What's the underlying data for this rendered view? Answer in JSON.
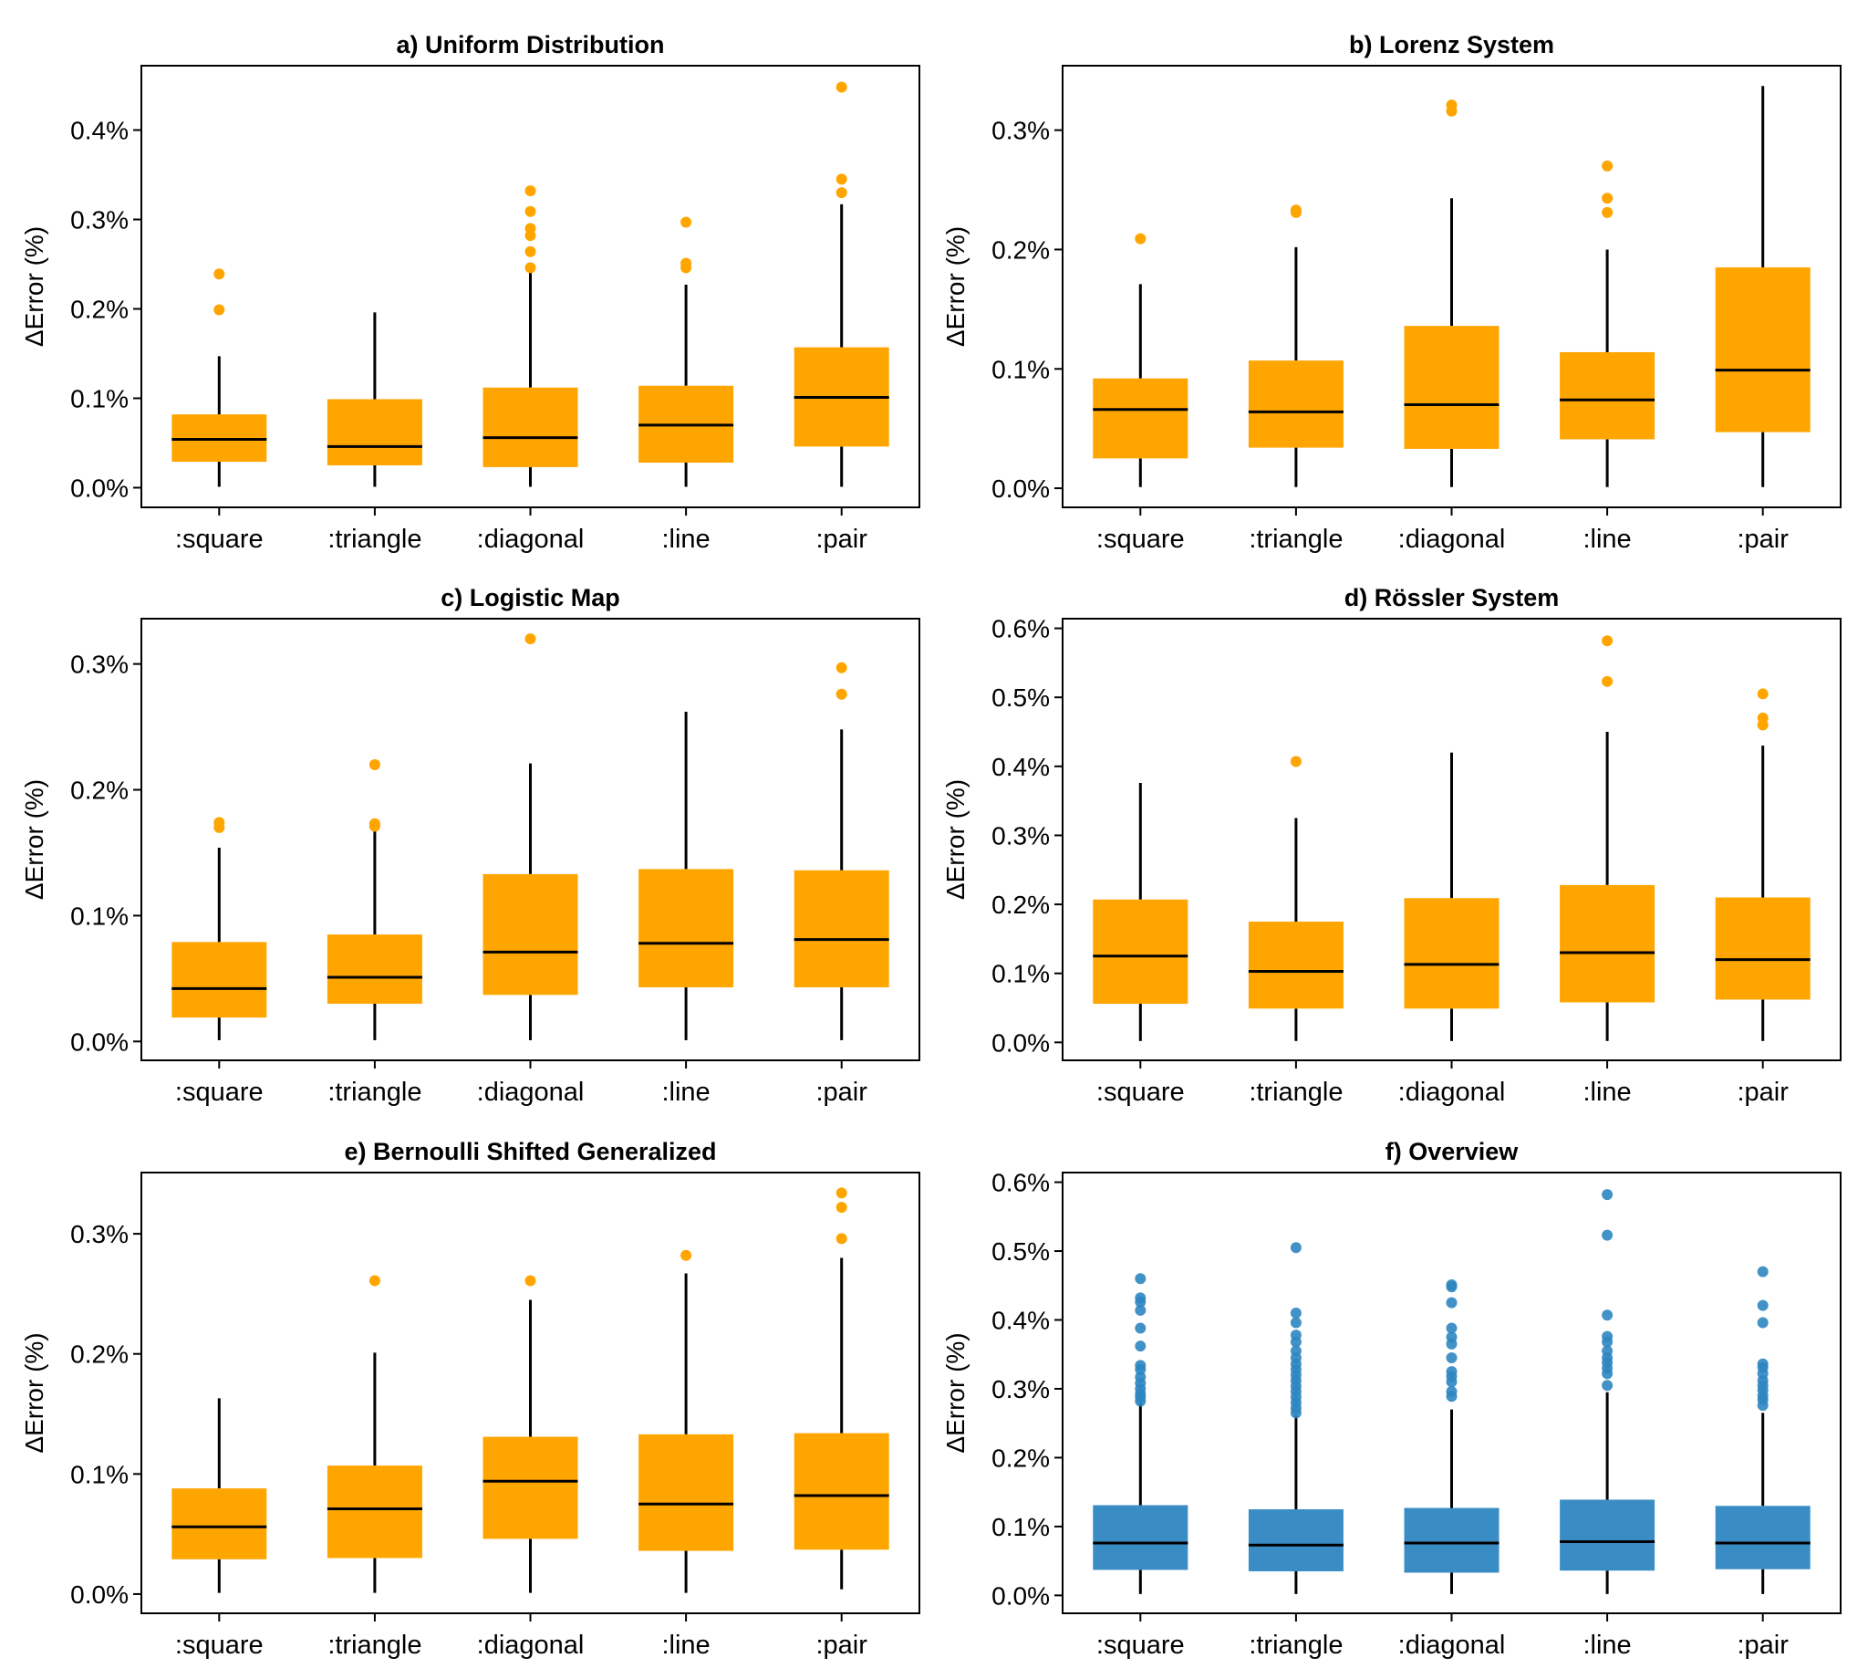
{
  "colors": {
    "orange": "#FFA500",
    "blue": "#3A8DC4",
    "blue_outlier": "#2E86C1",
    "line": "#000000"
  },
  "chart_data": [
    {
      "type": "box",
      "title": "a) Uniform Distribution",
      "ylabel": "ΔError (%)",
      "categories": [
        ":square",
        ":triangle",
        ":diagonal",
        ":line",
        ":pair"
      ],
      "yticks": [
        "0.0%",
        "0.1%",
        "0.2%",
        "0.3%",
        "0.4%"
      ],
      "ylim": [
        -0.022,
        0.472
      ],
      "color": "orange",
      "boxes": [
        {
          "whisker_low": 0.001,
          "q1": 0.029,
          "median": 0.054,
          "q3": 0.082,
          "whisker_high": 0.147,
          "outliers": [
            0.199,
            0.239
          ]
        },
        {
          "whisker_low": 0.001,
          "q1": 0.025,
          "median": 0.046,
          "q3": 0.099,
          "whisker_high": 0.196,
          "outliers": []
        },
        {
          "whisker_low": 0.001,
          "q1": 0.023,
          "median": 0.056,
          "q3": 0.112,
          "whisker_high": 0.244,
          "outliers": [
            0.246,
            0.264,
            0.282,
            0.29,
            0.309,
            0.332
          ]
        },
        {
          "whisker_low": 0.001,
          "q1": 0.028,
          "median": 0.07,
          "q3": 0.114,
          "whisker_high": 0.227,
          "outliers": [
            0.246,
            0.251,
            0.297
          ]
        },
        {
          "whisker_low": 0.001,
          "q1": 0.046,
          "median": 0.101,
          "q3": 0.157,
          "whisker_high": 0.317,
          "outliers": [
            0.33,
            0.345,
            0.448
          ]
        }
      ]
    },
    {
      "type": "box",
      "title": "b) Lorenz System",
      "ylabel": "ΔError (%)",
      "categories": [
        ":square",
        ":triangle",
        ":diagonal",
        ":line",
        ":pair"
      ],
      "yticks": [
        "0.0%",
        "0.1%",
        "0.2%",
        "0.3%"
      ],
      "ylim": [
        -0.016,
        0.354
      ],
      "color": "orange",
      "boxes": [
        {
          "whisker_low": 0.001,
          "q1": 0.025,
          "median": 0.066,
          "q3": 0.092,
          "whisker_high": 0.171,
          "outliers": [
            0.209
          ]
        },
        {
          "whisker_low": 0.001,
          "q1": 0.034,
          "median": 0.064,
          "q3": 0.107,
          "whisker_high": 0.202,
          "outliers": [
            0.231,
            0.233
          ]
        },
        {
          "whisker_low": 0.001,
          "q1": 0.033,
          "median": 0.07,
          "q3": 0.136,
          "whisker_high": 0.243,
          "outliers": [
            0.316,
            0.321
          ]
        },
        {
          "whisker_low": 0.001,
          "q1": 0.041,
          "median": 0.074,
          "q3": 0.114,
          "whisker_high": 0.2,
          "outliers": [
            0.231,
            0.243,
            0.27
          ]
        },
        {
          "whisker_low": 0.001,
          "q1": 0.047,
          "median": 0.099,
          "q3": 0.185,
          "whisker_high": 0.337,
          "outliers": []
        }
      ]
    },
    {
      "type": "box",
      "title": "c) Logistic Map",
      "ylabel": "ΔError (%)",
      "categories": [
        ":square",
        ":triangle",
        ":diagonal",
        ":line",
        ":pair"
      ],
      "yticks": [
        "0.0%",
        "0.1%",
        "0.2%",
        "0.3%"
      ],
      "ylim": [
        -0.015,
        0.336
      ],
      "color": "orange",
      "boxes": [
        {
          "whisker_low": 0.001,
          "q1": 0.019,
          "median": 0.042,
          "q3": 0.079,
          "whisker_high": 0.154,
          "outliers": [
            0.17,
            0.174
          ]
        },
        {
          "whisker_low": 0.001,
          "q1": 0.03,
          "median": 0.051,
          "q3": 0.085,
          "whisker_high": 0.17,
          "outliers": [
            0.171,
            0.173,
            0.22
          ]
        },
        {
          "whisker_low": 0.001,
          "q1": 0.037,
          "median": 0.071,
          "q3": 0.133,
          "whisker_high": 0.221,
          "outliers": [
            0.32
          ]
        },
        {
          "whisker_low": 0.001,
          "q1": 0.043,
          "median": 0.078,
          "q3": 0.137,
          "whisker_high": 0.262,
          "outliers": []
        },
        {
          "whisker_low": 0.001,
          "q1": 0.043,
          "median": 0.081,
          "q3": 0.136,
          "whisker_high": 0.248,
          "outliers": [
            0.276,
            0.297
          ]
        }
      ]
    },
    {
      "type": "box",
      "title": "d) Rössler System",
      "ylabel": "ΔError (%)",
      "categories": [
        ":square",
        ":triangle",
        ":diagonal",
        ":line",
        ":pair"
      ],
      "yticks": [
        "0.0%",
        "0.1%",
        "0.2%",
        "0.3%",
        "0.4%",
        "0.5%",
        "0.6%"
      ],
      "ylim": [
        -0.026,
        0.614
      ],
      "color": "orange",
      "boxes": [
        {
          "whisker_low": 0.002,
          "q1": 0.056,
          "median": 0.125,
          "q3": 0.207,
          "whisker_high": 0.376,
          "outliers": []
        },
        {
          "whisker_low": 0.002,
          "q1": 0.049,
          "median": 0.103,
          "q3": 0.175,
          "whisker_high": 0.325,
          "outliers": [
            0.407
          ]
        },
        {
          "whisker_low": 0.002,
          "q1": 0.049,
          "median": 0.113,
          "q3": 0.209,
          "whisker_high": 0.42,
          "outliers": []
        },
        {
          "whisker_low": 0.002,
          "q1": 0.058,
          "median": 0.13,
          "q3": 0.228,
          "whisker_high": 0.45,
          "outliers": [
            0.523,
            0.582
          ]
        },
        {
          "whisker_low": 0.002,
          "q1": 0.062,
          "median": 0.12,
          "q3": 0.21,
          "whisker_high": 0.43,
          "outliers": [
            0.46,
            0.47,
            0.505
          ]
        }
      ]
    },
    {
      "type": "box",
      "title": "e) Bernoulli Shifted Generalized",
      "ylabel": "ΔError (%)",
      "categories": [
        ":square",
        ":triangle",
        ":diagonal",
        ":line",
        ":pair"
      ],
      "yticks": [
        "0.0%",
        "0.1%",
        "0.2%",
        "0.3%"
      ],
      "ylim": [
        -0.016,
        0.351
      ],
      "color": "orange",
      "boxes": [
        {
          "whisker_low": 0.001,
          "q1": 0.029,
          "median": 0.056,
          "q3": 0.088,
          "whisker_high": 0.163,
          "outliers": []
        },
        {
          "whisker_low": 0.001,
          "q1": 0.03,
          "median": 0.071,
          "q3": 0.107,
          "whisker_high": 0.201,
          "outliers": [
            0.261
          ]
        },
        {
          "whisker_low": 0.001,
          "q1": 0.046,
          "median": 0.094,
          "q3": 0.131,
          "whisker_high": 0.245,
          "outliers": [
            0.261
          ]
        },
        {
          "whisker_low": 0.001,
          "q1": 0.036,
          "median": 0.075,
          "q3": 0.133,
          "whisker_high": 0.267,
          "outliers": [
            0.282
          ]
        },
        {
          "whisker_low": 0.004,
          "q1": 0.037,
          "median": 0.082,
          "q3": 0.134,
          "whisker_high": 0.28,
          "outliers": [
            0.296,
            0.322,
            0.334
          ]
        }
      ]
    },
    {
      "type": "box",
      "title": "f) Overview",
      "ylabel": "ΔError (%)",
      "categories": [
        ":square",
        ":triangle",
        ":diagonal",
        ":line",
        ":pair"
      ],
      "yticks": [
        "0.0%",
        "0.1%",
        "0.2%",
        "0.3%",
        "0.4%",
        "0.5%",
        "0.6%"
      ],
      "ylim": [
        -0.026,
        0.614
      ],
      "color": "blue",
      "boxes": [
        {
          "whisker_low": 0.002,
          "q1": 0.037,
          "median": 0.076,
          "q3": 0.131,
          "whisker_high": 0.28,
          "outliers": [
            0.282,
            0.288,
            0.293,
            0.3,
            0.308,
            0.317,
            0.328,
            0.334,
            0.362,
            0.388,
            0.414,
            0.426,
            0.432,
            0.46
          ]
        },
        {
          "whisker_low": 0.002,
          "q1": 0.035,
          "median": 0.073,
          "q3": 0.125,
          "whisker_high": 0.262,
          "outliers": [
            0.265,
            0.272,
            0.28,
            0.288,
            0.296,
            0.304,
            0.312,
            0.32,
            0.328,
            0.336,
            0.345,
            0.355,
            0.368,
            0.378,
            0.396,
            0.41,
            0.505
          ]
        },
        {
          "whisker_low": 0.002,
          "q1": 0.033,
          "median": 0.076,
          "q3": 0.127,
          "whisker_high": 0.27,
          "outliers": [
            0.289,
            0.296,
            0.31,
            0.318,
            0.325,
            0.345,
            0.365,
            0.375,
            0.388,
            0.425,
            0.448,
            0.451
          ]
        },
        {
          "whisker_low": 0.002,
          "q1": 0.036,
          "median": 0.078,
          "q3": 0.139,
          "whisker_high": 0.295,
          "outliers": [
            0.305,
            0.322,
            0.33,
            0.338,
            0.345,
            0.355,
            0.368,
            0.376,
            0.407,
            0.523,
            0.582
          ]
        },
        {
          "whisker_low": 0.002,
          "q1": 0.038,
          "median": 0.076,
          "q3": 0.13,
          "whisker_high": 0.265,
          "outliers": [
            0.276,
            0.284,
            0.29,
            0.298,
            0.305,
            0.312,
            0.322,
            0.331,
            0.336,
            0.396,
            0.421,
            0.47
          ]
        }
      ]
    }
  ]
}
